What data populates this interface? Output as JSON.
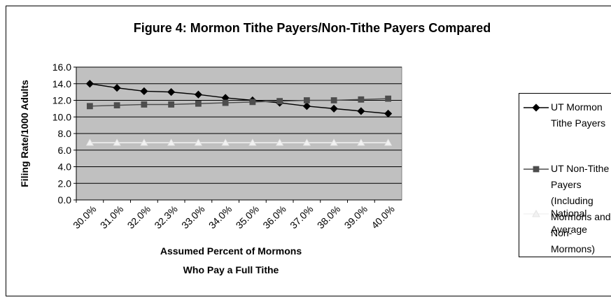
{
  "chart_data": {
    "type": "line",
    "title": "Figure 4:  Mormon Tithe Payers/Non-Tithe Payers Compared",
    "x_label": "Assumed Percent of Mormons Who Pay a Full Tithe",
    "y_label": "Filing Rate/1000 Adults",
    "categories": [
      "30.0%",
      "31.0%",
      "32.0%",
      "32.3%",
      "33.0%",
      "34.0%",
      "35.0%",
      "36.0%",
      "37.0%",
      "38.0%",
      "39.0%",
      "40.0%"
    ],
    "series": [
      {
        "name": "UT Mormon Tithe Payers",
        "color": "#000000",
        "marker": "diamond",
        "values": [
          14.0,
          13.5,
          13.1,
          13.0,
          12.7,
          12.3,
          12.0,
          11.7,
          11.3,
          11.0,
          10.7,
          10.4
        ]
      },
      {
        "name": "UT Non-Tithe Payers (Including Mormons and Non-Mormons)",
        "color": "#4d4d4d",
        "marker": "square",
        "values": [
          11.3,
          11.4,
          11.5,
          11.5,
          11.6,
          11.7,
          11.8,
          11.9,
          12.0,
          12.0,
          12.1,
          12.2
        ]
      },
      {
        "name": "National Average",
        "color": "#f2f2f2",
        "marker": "triangle",
        "values": [
          6.9,
          6.9,
          6.9,
          6.9,
          6.9,
          6.9,
          6.9,
          6.9,
          6.9,
          6.9,
          6.9,
          6.9
        ]
      }
    ],
    "ylim": [
      0,
      16
    ],
    "yticks": [
      {
        "value": 0,
        "label": "0.0"
      },
      {
        "value": 2,
        "label": "2.0"
      },
      {
        "value": 4,
        "label": "4.0"
      },
      {
        "value": 6,
        "label": "6.0"
      },
      {
        "value": 8,
        "label": "8.0"
      },
      {
        "value": 10,
        "label": "10.0"
      },
      {
        "value": 12,
        "label": "12.0"
      },
      {
        "value": 14,
        "label": "14.0"
      },
      {
        "value": 16,
        "label": "16.0"
      }
    ],
    "grid": true,
    "legend": "right",
    "plot_background": "#c0c0c0"
  }
}
